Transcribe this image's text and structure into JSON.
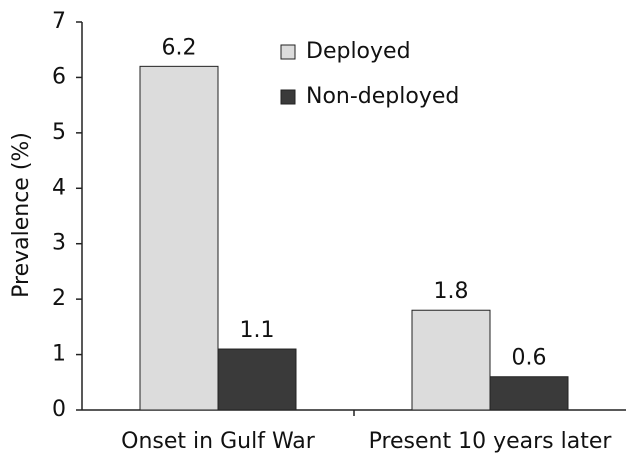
{
  "chart_data": {
    "type": "bar",
    "categories": [
      "Onset in Gulf War",
      "Present 10 years later"
    ],
    "series": [
      {
        "name": "Deployed",
        "color": "#dcdcdc",
        "values": [
          6.2,
          1.8
        ]
      },
      {
        "name": "Non-deployed",
        "color": "#3a3a3a",
        "values": [
          1.1,
          0.6
        ]
      }
    ],
    "ylabel": "Prevalence (%)",
    "ylim": [
      0,
      7
    ],
    "yticks": [
      0,
      1,
      2,
      3,
      4,
      5,
      6,
      7
    ],
    "legend": "top"
  }
}
